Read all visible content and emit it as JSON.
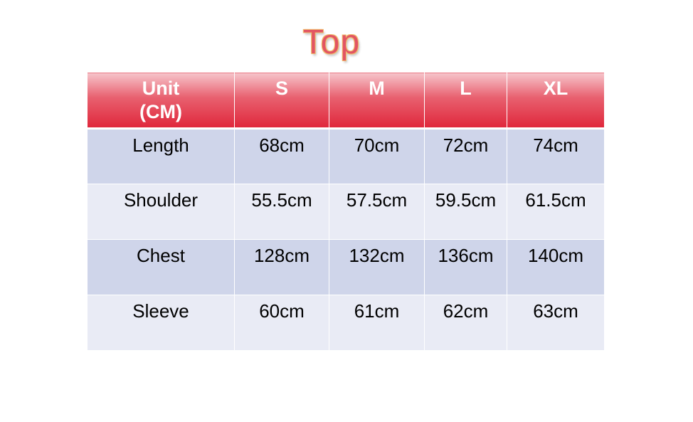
{
  "title": "Top",
  "colors": {
    "header": "#e0273b",
    "row_dark": "#cfd5ea",
    "row_light": "#e9ebf5",
    "title": "#e25563"
  },
  "headers": [
    "Unit",
    "(CM)",
    "S",
    "M",
    "L",
    "XL"
  ],
  "rows": [
    {
      "label": "Length",
      "values": [
        "68cm",
        "70cm",
        "72cm",
        "74cm"
      ]
    },
    {
      "label": "Shoulder",
      "values": [
        "55.5cm",
        "57.5cm",
        "59.5cm",
        "61.5cm"
      ]
    },
    {
      "label": "Chest",
      "values": [
        "128cm",
        "132cm",
        "136cm",
        "140cm"
      ]
    },
    {
      "label": "Sleeve",
      "values": [
        "60cm",
        "61cm",
        "62cm",
        "63cm"
      ]
    }
  ]
}
